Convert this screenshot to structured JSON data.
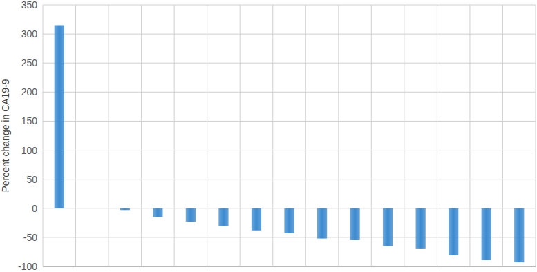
{
  "chart_data": {
    "type": "bar",
    "y_label": "Percent change in CA19-9",
    "categories": [
      null,
      null,
      null,
      null,
      null,
      null,
      null,
      null,
      null,
      null,
      null,
      null,
      null,
      null,
      null
    ],
    "values": [
      315,
      0,
      -3,
      -15,
      -23,
      -31,
      -38,
      -43,
      -52,
      -54,
      -65,
      -69,
      -81,
      -89,
      -93
    ],
    "color": "#3b8ad0",
    "ylim": [
      -100,
      350
    ],
    "yticks": [
      -100,
      -50,
      0,
      50,
      100,
      150,
      200,
      250,
      300,
      350
    ],
    "grid": true,
    "tick_labels": "y"
  }
}
